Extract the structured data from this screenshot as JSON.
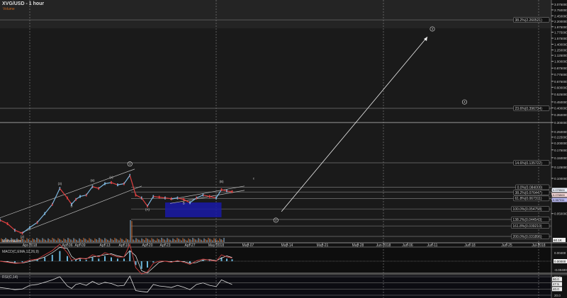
{
  "header": {
    "title": "XVG/USD - 1 hour",
    "subtitle": "Volume"
  },
  "volume_label": "MotiveWave",
  "volume_tag": "60.1K",
  "chart_data": [
    {
      "type": "line",
      "title": "XVG/USD - 1 hour",
      "y_scale": "log",
      "ylim": [
        0.03,
        3.2
      ],
      "y_ticks": [
        "3.075000",
        "2.750000",
        "2.450000",
        "2.200000",
        "1.975000",
        "1.775000",
        "1.575000",
        "1.400000",
        "1.250000",
        "1.125000",
        "1.000000",
        "0.875000",
        "0.775000",
        "0.675000",
        "0.600000",
        "0.525000",
        "0.450000",
        "0.400000",
        "0.350000",
        "0.300000",
        "0.250000",
        "0.225000",
        "0.200000",
        "0.175000",
        "0.150000",
        "0.125000",
        "0.100000",
        "0.050000"
      ],
      "x_ticks": [
        "Apr-2018",
        "Apr-06",
        "Apr-09",
        "Apr-13",
        "Apr-16",
        "Apr-20",
        "Apr-23",
        "Apr-27",
        "May-2018",
        "May-07",
        "May-14",
        "May-21",
        "May-28",
        "Jun-2018",
        "Jun-06",
        "Jun-11",
        "Jun-18",
        "Jun-25",
        "Jul-2018"
      ],
      "x_tick_dates": [
        "2018-04-01",
        "2018-04-06",
        "2018-04-09",
        "2018-04-13",
        "2018-04-16",
        "2018-04-20",
        "2018-04-23",
        "2018-04-27",
        "2018-05-01",
        "2018-05-07",
        "2018-05-14",
        "2018-05-21",
        "2018-05-28",
        "2018-06-01",
        "2018-06-06",
        "2018-06-11",
        "2018-06-18",
        "2018-06-25",
        "2018-07-01"
      ],
      "series": [
        {
          "x": [
            "2018-03-28",
            "2018-03-29",
            "2018-03-30",
            "2018-03-31",
            "2018-04-01",
            "2018-04-02",
            "2018-04-03",
            "2018-04-04",
            "2018-04-05",
            "2018-04-06",
            "2018-04-07",
            "2018-04-08",
            "2018-04-09",
            "2018-04-10",
            "2018-04-11",
            "2018-04-12",
            "2018-04-13",
            "2018-04-14",
            "2018-04-15",
            "2018-04-16",
            "2018-04-17",
            "2018-04-18",
            "2018-04-19",
            "2018-04-20",
            "2018-04-21",
            "2018-04-22",
            "2018-04-23",
            "2018-04-24",
            "2018-04-25",
            "2018-04-26",
            "2018-04-27",
            "2018-04-28",
            "2018-04-29",
            "2018-04-30",
            "2018-05-01",
            "2018-05-02",
            "2018-05-03",
            "2018-05-04"
          ],
          "values": [
            0.044,
            0.041,
            0.036,
            0.034,
            0.038,
            0.042,
            0.05,
            0.06,
            0.082,
            0.068,
            0.06,
            0.066,
            0.07,
            0.072,
            0.085,
            0.082,
            0.09,
            0.092,
            0.088,
            0.09,
            0.106,
            0.072,
            0.068,
            0.058,
            0.07,
            0.069,
            0.068,
            0.067,
            0.068,
            0.066,
            0.062,
            0.068,
            0.072,
            0.07,
            0.068,
            0.08,
            0.078,
            0.077
          ]
        }
      ],
      "fib_levels": [
        {
          "label": "38.2%(2.260521)",
          "value": 2.260521,
          "full": true
        },
        {
          "label": "23.6%(0.396734)",
          "value": 0.396734,
          "full": true
        },
        {
          "label": "14.6%(0.135722)",
          "value": 0.135722,
          "full": true
        },
        {
          "label": "0.0%(0.084000)",
          "value": 0.084
        },
        {
          "label": "38.2%(0.076447)",
          "value": 0.076447
        },
        {
          "label": "61.8%(0.067311)",
          "value": 0.067311
        },
        {
          "label": "100.0%(0.054758)",
          "value": 0.054758
        },
        {
          "label": "138.2%(0.044543)",
          "value": 0.044543
        },
        {
          "label": "161.8%(0.039210)",
          "value": 0.03921
        },
        {
          "label": "200.0%(0.031896)",
          "value": 0.031896
        }
      ],
      "price_tags": [
        {
          "value": 0.0795,
          "label": "0.079500",
          "color": "#e8eef8"
        },
        {
          "value": 0.0765,
          "label": "0.076500",
          "color": "#f3d6d6"
        },
        {
          "value": 0.0673,
          "label": "0.067311",
          "color": "#b8b8f0"
        }
      ],
      "target_zone": {
        "from": "2018-04-23",
        "to": "2018-05-02",
        "low": 0.0465,
        "high": 0.0622,
        "color": "#1a1aa8"
      },
      "projection": {
        "from": {
          "x": "2018-05-13",
          "y": 0.052
        },
        "to": {
          "x": "2018-06-10",
          "y": 1.62
        }
      },
      "wave_labels": [
        {
          "text": "(2)",
          "x": "2018-03-31",
          "y": 0.031
        },
        {
          "text": "(3)",
          "x": "2018-04-05",
          "y": 0.088
        },
        {
          "text": "B",
          "x": "2018-04-07",
          "y": 0.057
        },
        {
          "text": "(iii)",
          "x": "2018-04-11",
          "y": 0.094
        },
        {
          "text": "(v)",
          "x": "2018-04-14",
          "y": 0.1
        },
        {
          "text": "1",
          "x": "2018-04-17",
          "y": 0.13
        },
        {
          "text": "(A)",
          "x": "2018-04-20",
          "y": 0.053
        },
        {
          "text": "B",
          "x": "2018-04-26",
          "y": 0.06
        },
        {
          "text": "(B)",
          "x": "2018-05-02",
          "y": 0.092
        },
        {
          "text": "c",
          "x": "2018-05-08",
          "y": 0.098
        },
        {
          "text": "3",
          "x": "2018-06-11",
          "y": 1.85
        },
        {
          "text": "4",
          "x": "2018-06-17",
          "y": 0.44
        },
        {
          "text": "2",
          "x": "2018-05-12",
          "y": 0.043
        }
      ]
    },
    {
      "type": "line",
      "title": "MACD(C,EMA,12,26,9)",
      "y_ticks": [
        "0.00400",
        "0.00000",
        "-0.00400"
      ],
      "series": [
        {
          "values": [
            0,
            -0.0005,
            -0.001,
            -0.0008,
            0.0005,
            0.001,
            0.003,
            0.005,
            0.008,
            0.004,
            0.0005,
            0.001,
            0.0015,
            0.001,
            0.003,
            0.002,
            0.004,
            0.003,
            0.002,
            0.002,
            0.008,
            -0.003,
            -0.006,
            -0.005,
            -0.001,
            0,
            0,
            -0.0005,
            0.0003,
            -0.0005,
            -0.0015,
            0.0002,
            0.001,
            0.0005,
            0,
            0.003,
            0.002,
            0.0015
          ]
        }
      ]
    },
    {
      "type": "line",
      "title": "RSI(C,14)",
      "y_ticks": [
        "80.0",
        "20.0"
      ],
      "tags": [
        "60.0",
        "47.5",
        "40.0"
      ],
      "series": [
        {
          "values": [
            45,
            42,
            38,
            40,
            52,
            55,
            62,
            70,
            80,
            50,
            42,
            55,
            58,
            52,
            65,
            55,
            62,
            58,
            50,
            52,
            82,
            35,
            32,
            30,
            55,
            50,
            48,
            45,
            52,
            46,
            38,
            55,
            60,
            52,
            48,
            70,
            62,
            55
          ]
        }
      ]
    }
  ]
}
